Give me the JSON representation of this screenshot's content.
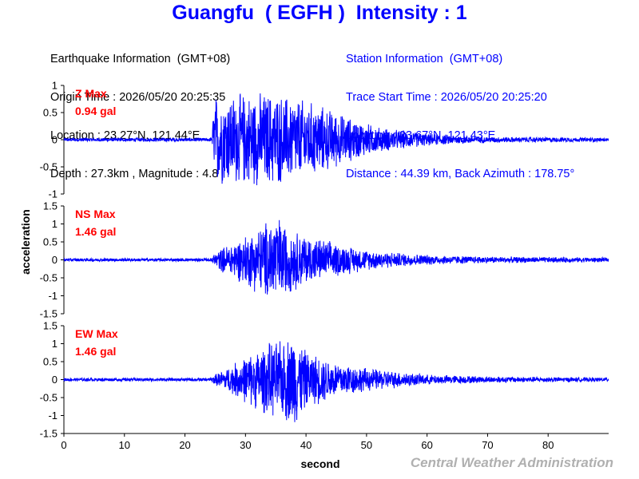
{
  "title": "Guangfu  ( EGFH )  Intensity : 1",
  "earthquake_info": {
    "heading": "Earthquake Information  (GMT+08)",
    "origin_time": "Origin Time : 2026/05/20 20:25:35",
    "location": "Location : 23.27°N, 121.44°E",
    "depth_magnitude": "Depth : 27.3km , Magnitude : 4.8"
  },
  "station_info": {
    "heading": "Station Information  (GMT+08)",
    "trace_start": "Trace Start Time : 2026/05/20 20:25:20",
    "location": "Location : 23.67°N, 121.43°E",
    "distance": "Distance : 44.39 km, Back Azimuth : 178.75°"
  },
  "watermark": "Central Weather Administration",
  "colors": {
    "title": "#0000ff",
    "trace": "#0000ff",
    "max_label": "#ff0000",
    "station_text": "#0000ff",
    "watermark": "#b0b0b0"
  },
  "chart_data": {
    "type": "line",
    "xlabel": "second",
    "ylabel": "acceleration",
    "xlim": [
      0,
      90
    ],
    "x_ticks": [
      "0",
      "10",
      "20",
      "30",
      "40",
      "50",
      "60",
      "70",
      "80"
    ],
    "grid": false,
    "series": [
      {
        "name": "Z",
        "max_label": "Z Max",
        "max_value": "0.94 gal",
        "ylim": [
          -1,
          1
        ],
        "y_ticks": [
          "1",
          "0.5",
          "0",
          "-0.5",
          "-1"
        ],
        "noise": 0.03,
        "onset_s": 24.5,
        "envelope": [
          [
            24.5,
            0.35
          ],
          [
            25,
            0.9
          ],
          [
            30,
            0.92
          ],
          [
            34,
            0.94
          ],
          [
            38,
            0.85
          ],
          [
            42,
            0.7
          ],
          [
            47,
            0.45
          ],
          [
            52,
            0.25
          ],
          [
            60,
            0.12
          ],
          [
            70,
            0.06
          ],
          [
            90,
            0.04
          ]
        ]
      },
      {
        "name": "NS",
        "max_label": "NS Max",
        "max_value": "1.46 gal",
        "ylim": [
          -1.5,
          1.5
        ],
        "y_ticks": [
          "1.5",
          "1",
          "0.5",
          "0",
          "-0.5",
          "-1",
          "-1.5"
        ],
        "noise": 0.04,
        "onset_s": 24.5,
        "envelope": [
          [
            24.5,
            0.15
          ],
          [
            26,
            0.35
          ],
          [
            30,
            0.75
          ],
          [
            33,
            1.1
          ],
          [
            35,
            1.4
          ],
          [
            37,
            1.0
          ],
          [
            40,
            0.75
          ],
          [
            45,
            0.5
          ],
          [
            50,
            0.3
          ],
          [
            55,
            0.22
          ],
          [
            60,
            0.15
          ],
          [
            70,
            0.1
          ],
          [
            90,
            0.07
          ]
        ]
      },
      {
        "name": "EW",
        "max_label": "EW Max",
        "max_value": "1.46 gal",
        "ylim": [
          -1.5,
          1.5
        ],
        "y_ticks": [
          "1.5",
          "1",
          "0.5",
          "0",
          "-0.5",
          "-1",
          "-1.5"
        ],
        "noise": 0.04,
        "onset_s": 24.5,
        "envelope": [
          [
            24.5,
            0.12
          ],
          [
            26,
            0.25
          ],
          [
            30,
            0.7
          ],
          [
            34,
            1.1
          ],
          [
            36,
            1.15
          ],
          [
            38,
            1.45
          ],
          [
            40,
            0.85
          ],
          [
            45,
            0.55
          ],
          [
            50,
            0.35
          ],
          [
            55,
            0.25
          ],
          [
            60,
            0.15
          ],
          [
            70,
            0.1
          ],
          [
            90,
            0.06
          ]
        ]
      }
    ]
  }
}
